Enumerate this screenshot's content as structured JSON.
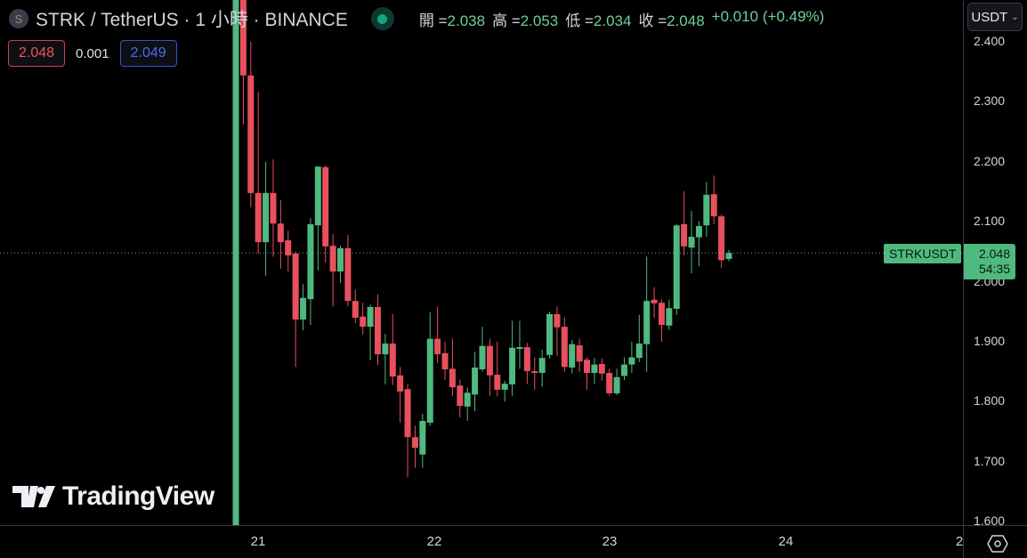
{
  "header": {
    "symbol_logo": "S",
    "title": "STRK / TetherUS · 1 小時 · BINANCE",
    "ohlc": [
      {
        "label": "開 =",
        "value": "2.038"
      },
      {
        "label": "高 =",
        "value": "2.053"
      },
      {
        "label": "低 =",
        "value": "2.034"
      },
      {
        "label": "收 =",
        "value": "2.048"
      }
    ],
    "change": "+0.010 (+0.49%)"
  },
  "quote": {
    "bid": "2.048",
    "spread": "0.001",
    "ask": "2.049"
  },
  "currency_button": "USDT",
  "last_price": {
    "symbol": "STRKUSDT",
    "price": "2.048",
    "countdown": "54:35"
  },
  "watermark": "TradingView",
  "colors": {
    "up": "#4fb97f",
    "down": "#e8505d",
    "background": "#000000",
    "accent": "#14a37f"
  },
  "chart_data": {
    "type": "candlestick",
    "interval": "1h",
    "ylim": [
      1.6,
      2.42
    ],
    "y_ticks": [
      "2.400",
      "2.300",
      "2.200",
      "2.100",
      "2.000",
      "1.900",
      "1.800",
      "1.700",
      "1.600"
    ],
    "x_ticks": [
      "21",
      "22",
      "23",
      "24",
      "2"
    ],
    "last_price_line": 2.048,
    "candles_ohlc": [
      [
        1.55,
        2.5,
        1.55,
        2.49
      ],
      [
        2.49,
        2.5,
        2.262,
        2.344
      ],
      [
        2.344,
        2.4,
        2.124,
        2.148
      ],
      [
        2.148,
        2.317,
        2.047,
        2.066
      ],
      [
        2.066,
        2.2,
        2.01,
        2.148
      ],
      [
        2.148,
        2.204,
        2.042,
        2.097
      ],
      [
        2.097,
        2.136,
        2.022,
        2.066
      ],
      [
        2.069,
        2.085,
        2.017,
        2.044
      ],
      [
        2.047,
        2.05,
        1.858,
        1.937
      ],
      [
        1.937,
        1.996,
        1.919,
        1.973
      ],
      [
        1.971,
        2.106,
        1.928,
        2.096
      ],
      [
        2.094,
        2.192,
        2.019,
        2.192
      ],
      [
        2.191,
        2.194,
        2.032,
        2.059
      ],
      [
        2.06,
        2.08,
        1.959,
        2.017
      ],
      [
        2.017,
        2.06,
        1.998,
        2.056
      ],
      [
        2.056,
        2.078,
        1.959,
        1.968
      ],
      [
        1.968,
        1.987,
        1.931,
        1.94
      ],
      [
        1.942,
        1.965,
        1.912,
        1.925
      ],
      [
        1.925,
        1.962,
        1.869,
        1.958
      ],
      [
        1.958,
        1.979,
        1.861,
        1.879
      ],
      [
        1.879,
        1.913,
        1.829,
        1.897
      ],
      [
        1.897,
        1.946,
        1.828,
        1.842
      ],
      [
        1.844,
        1.858,
        1.765,
        1.817
      ],
      [
        1.821,
        1.83,
        1.674,
        1.741
      ],
      [
        1.741,
        1.76,
        1.69,
        1.723
      ],
      [
        1.712,
        1.78,
        1.69,
        1.768
      ],
      [
        1.765,
        1.949,
        1.76,
        1.905
      ],
      [
        1.905,
        1.959,
        1.864,
        1.879
      ],
      [
        1.881,
        1.9,
        1.836,
        1.854
      ],
      [
        1.855,
        1.905,
        1.809,
        1.824
      ],
      [
        1.827,
        1.837,
        1.774,
        1.793
      ],
      [
        1.792,
        1.824,
        1.768,
        1.815
      ],
      [
        1.812,
        1.883,
        1.784,
        1.857
      ],
      [
        1.854,
        1.925,
        1.85,
        1.893
      ],
      [
        1.893,
        1.905,
        1.81,
        1.844
      ],
      [
        1.845,
        1.9,
        1.809,
        1.82
      ],
      [
        1.82,
        1.835,
        1.8,
        1.83
      ],
      [
        1.829,
        1.935,
        1.81,
        1.89
      ],
      [
        1.89,
        1.935,
        1.855,
        1.891
      ],
      [
        1.891,
        1.898,
        1.83,
        1.851
      ],
      [
        1.851,
        1.874,
        1.82,
        1.848
      ],
      [
        1.848,
        1.887,
        1.825,
        1.873
      ],
      [
        1.878,
        1.95,
        1.872,
        1.946
      ],
      [
        1.946,
        1.959,
        1.876,
        1.924
      ],
      [
        1.925,
        1.941,
        1.85,
        1.858
      ],
      [
        1.857,
        1.903,
        1.847,
        1.896
      ],
      [
        1.894,
        1.905,
        1.85,
        1.867
      ],
      [
        1.87,
        1.874,
        1.82,
        1.848
      ],
      [
        1.848,
        1.873,
        1.83,
        1.862
      ],
      [
        1.863,
        1.872,
        1.835,
        1.847
      ],
      [
        1.848,
        1.855,
        1.81,
        1.814
      ],
      [
        1.814,
        1.855,
        1.811,
        1.841
      ],
      [
        1.843,
        1.874,
        1.836,
        1.862
      ],
      [
        1.862,
        1.9,
        1.848,
        1.874
      ],
      [
        1.873,
        1.945,
        1.866,
        1.897
      ],
      [
        1.896,
        2.042,
        1.85,
        1.968
      ],
      [
        1.97,
        1.991,
        1.94,
        1.964
      ],
      [
        1.965,
        1.97,
        1.9,
        1.928
      ],
      [
        1.927,
        1.97,
        1.92,
        1.956
      ],
      [
        1.955,
        2.096,
        1.945,
        2.094
      ],
      [
        2.096,
        2.151,
        2.044,
        2.059
      ],
      [
        2.057,
        2.118,
        2.014,
        2.075
      ],
      [
        2.074,
        2.101,
        2.026,
        2.093
      ],
      [
        2.094,
        2.166,
        2.075,
        2.145
      ],
      [
        2.146,
        2.177,
        2.096,
        2.109
      ],
      [
        2.109,
        2.112,
        2.023,
        2.036
      ],
      [
        2.038,
        2.053,
        2.034,
        2.048
      ]
    ]
  }
}
